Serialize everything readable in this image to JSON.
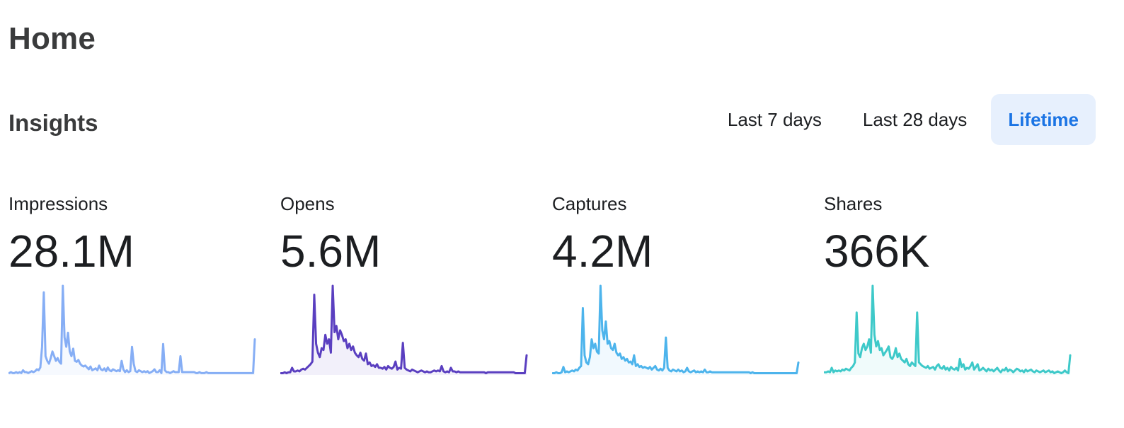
{
  "page": {
    "title": "Home"
  },
  "insights": {
    "title": "Insights",
    "ranges": [
      {
        "label": "Last 7 days",
        "active": false
      },
      {
        "label": "Last 28 days",
        "active": false
      },
      {
        "label": "Lifetime",
        "active": true
      }
    ]
  },
  "metrics": [
    {
      "label": "Impressions",
      "value": "28.1M",
      "color": "#86aef5"
    },
    {
      "label": "Opens",
      "value": "5.6M",
      "color": "#5a3fc0"
    },
    {
      "label": "Captures",
      "value": "4.2M",
      "color": "#4db4ec"
    },
    {
      "label": "Shares",
      "value": "366K",
      "color": "#3ec9c9"
    }
  ],
  "chart_data": [
    {
      "type": "area",
      "series": [
        {
          "values": [
            2,
            3,
            2,
            2,
            3,
            2,
            3,
            2,
            5,
            3,
            3,
            2,
            3,
            4,
            3,
            4,
            6,
            5,
            8,
            30,
            88,
            20,
            15,
            12,
            18,
            25,
            20,
            15,
            18,
            14,
            12,
            95,
            40,
            30,
            45,
            25,
            20,
            28,
            15,
            14,
            16,
            12,
            10,
            9,
            10,
            8,
            6,
            9,
            5,
            6,
            7,
            5,
            10,
            6,
            5,
            7,
            4,
            8,
            5,
            4,
            6,
            5,
            4,
            5,
            4,
            15,
            6,
            3,
            5,
            3,
            4,
            30,
            12,
            4,
            3,
            5,
            4,
            3,
            4,
            3,
            4,
            2,
            3,
            4,
            6,
            3,
            3,
            5,
            2,
            33,
            5,
            3,
            3,
            2,
            3,
            4,
            3,
            3,
            3,
            20,
            3,
            3,
            3,
            3,
            3,
            3,
            3,
            3,
            2,
            2,
            3,
            2,
            2,
            2,
            3,
            2,
            2,
            2,
            2,
            2,
            2,
            2,
            2,
            2,
            2,
            2,
            2,
            2,
            2,
            2,
            2,
            2,
            2,
            2,
            2,
            2,
            2,
            2,
            2,
            2,
            2,
            2,
            38
          ]
        }
      ]
    },
    {
      "type": "area",
      "series": [
        {
          "values": [
            2,
            2,
            3,
            2,
            3,
            3,
            8,
            4,
            4,
            5,
            4,
            6,
            7,
            6,
            8,
            10,
            12,
            15,
            90,
            35,
            25,
            20,
            30,
            28,
            45,
            35,
            40,
            25,
            100,
            48,
            55,
            40,
            50,
            45,
            38,
            40,
            30,
            35,
            28,
            32,
            25,
            22,
            20,
            25,
            18,
            16,
            24,
            12,
            14,
            10,
            11,
            9,
            12,
            8,
            8,
            7,
            9,
            6,
            10,
            8,
            7,
            9,
            15,
            6,
            8,
            7,
            36,
            8,
            6,
            5,
            4,
            6,
            5,
            4,
            3,
            4,
            5,
            4,
            3,
            4,
            3,
            3,
            4,
            5,
            4,
            5,
            4,
            10,
            4,
            3,
            4,
            3,
            8,
            4,
            4,
            3,
            4,
            3,
            3,
            3,
            3,
            3,
            3,
            3,
            3,
            3,
            3,
            3,
            3,
            3,
            3,
            2,
            3,
            3,
            3,
            3,
            3,
            3,
            3,
            3,
            3,
            3,
            3,
            3,
            3,
            3,
            3,
            2,
            2,
            2,
            2,
            2,
            2,
            22
          ]
        }
      ]
    },
    {
      "type": "area",
      "series": [
        {
          "values": [
            2,
            2,
            3,
            2,
            2,
            3,
            9,
            3,
            4,
            3,
            4,
            5,
            4,
            6,
            5,
            8,
            10,
            75,
            22,
            14,
            12,
            20,
            40,
            30,
            35,
            26,
            24,
            100,
            50,
            40,
            60,
            35,
            38,
            30,
            28,
            35,
            25,
            22,
            24,
            18,
            20,
            16,
            18,
            14,
            15,
            12,
            22,
            10,
            12,
            9,
            10,
            8,
            9,
            8,
            7,
            9,
            6,
            8,
            10,
            6,
            5,
            7,
            5,
            8,
            42,
            8,
            5,
            4,
            6,
            5,
            4,
            6,
            4,
            5,
            3,
            4,
            8,
            4,
            3,
            4,
            5,
            3,
            4,
            3,
            4,
            3,
            6,
            3,
            3,
            4,
            3,
            3,
            3,
            3,
            3,
            3,
            3,
            3,
            3,
            3,
            3,
            3,
            3,
            3,
            3,
            3,
            3,
            3,
            3,
            3,
            3,
            3,
            2,
            3,
            2,
            2,
            2,
            2,
            2,
            2,
            2,
            2,
            2,
            2,
            2,
            2,
            2,
            2,
            2,
            2,
            2,
            2,
            2,
            2,
            2,
            2,
            2,
            2,
            2,
            14
          ]
        }
      ]
    },
    {
      "type": "area",
      "series": [
        {
          "values": [
            3,
            3,
            4,
            3,
            8,
            3,
            5,
            4,
            5,
            4,
            6,
            5,
            7,
            6,
            5,
            8,
            10,
            14,
            70,
            24,
            20,
            30,
            35,
            28,
            32,
            40,
            25,
            100,
            45,
            32,
            38,
            28,
            30,
            22,
            25,
            28,
            32,
            20,
            18,
            22,
            30,
            20,
            24,
            18,
            16,
            14,
            18,
            12,
            10,
            14,
            12,
            10,
            70,
            14,
            12,
            10,
            9,
            8,
            10,
            7,
            8,
            9,
            6,
            10,
            12,
            8,
            7,
            10,
            6,
            8,
            5,
            9,
            7,
            6,
            8,
            5,
            18,
            9,
            12,
            6,
            8,
            7,
            10,
            14,
            6,
            9,
            12,
            5,
            6,
            8,
            6,
            4,
            7,
            5,
            6,
            4,
            6,
            8,
            5,
            3,
            6,
            5,
            8,
            4,
            6,
            5,
            3,
            5,
            7,
            6,
            4,
            5,
            3,
            6,
            4,
            5,
            6,
            4,
            3,
            5,
            4,
            3,
            4,
            5,
            3,
            4,
            5,
            3,
            4,
            2,
            3,
            4,
            3,
            2,
            3,
            5,
            3,
            2,
            22
          ]
        }
      ]
    }
  ]
}
